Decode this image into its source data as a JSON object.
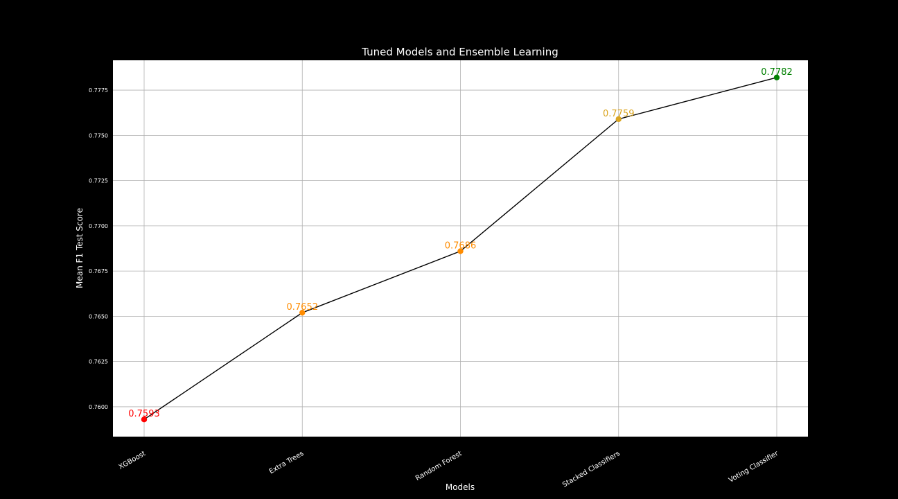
{
  "chart_data": {
    "type": "line",
    "title": "Tuned Models and Ensemble Learning",
    "xlabel": "Models",
    "ylabel": "Mean F1 Test Score",
    "categories": [
      "XGBoost",
      "Extra Trees",
      "Random Forest",
      "Stacked Classifiers",
      "Voting Classifier"
    ],
    "values": [
      0.7593,
      0.7652,
      0.7686,
      0.7759,
      0.7782
    ],
    "value_labels": [
      "0.7593",
      "0.7652",
      "0.7686",
      "0.7759",
      "0.7782"
    ],
    "point_colors": [
      "#ff0000",
      "#ff8c00",
      "#ff8c00",
      "#daa520",
      "#008000"
    ],
    "line_color": "#000000",
    "ylim": [
      0.75835,
      0.77915
    ],
    "yticks": [
      0.76,
      0.7625,
      0.765,
      0.7675,
      0.77,
      0.7725,
      0.775,
      0.7775
    ],
    "ytick_labels": [
      "0.7600",
      "0.7625",
      "0.7650",
      "0.7675",
      "0.7700",
      "0.7725",
      "0.7750",
      "0.7775"
    ],
    "grid": true,
    "plot_background": "#ffffff",
    "figure_background": "#000000"
  }
}
